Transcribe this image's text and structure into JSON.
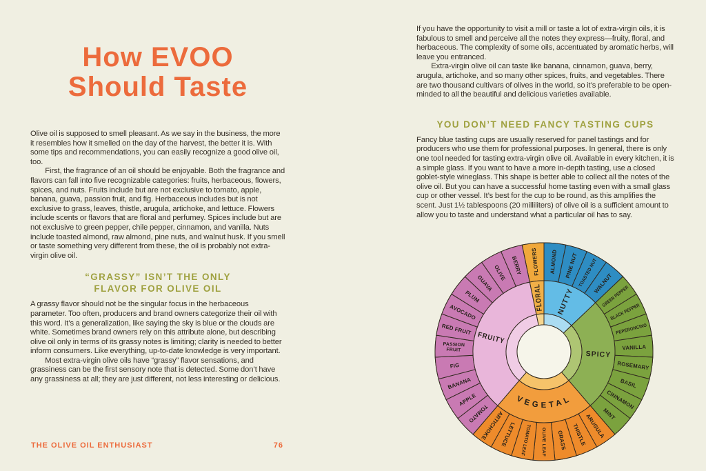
{
  "page": {
    "left": {
      "title_line1": "How EVOO",
      "title_line2": "Should Taste",
      "para1": "Olive oil is supposed to smell pleasant. As we say in the business, the more it resembles how it smelled on the day of the harvest, the better it is. With some tips and recommendations, you can easily recognize a good olive oil, too.",
      "para2": "First, the fragrance of an oil should be enjoyable. Both the fragrance and flavors can fall into five recognizable categories: fruits, herbaceous, flowers, spices, and nuts. Fruits include but are not exclusive to tomato, apple, banana, guava, passion fruit, and fig. Herbaceous includes but is not exclusive to grass, leaves, thistle, arugula, artichoke, and lettuce. Flowers include scents or flavors that are floral and perfumey. Spices include but are not exclusive to green pepper, chile pepper, cinnamon, and vanilla. Nuts include toasted almond, raw almond, pine nuts, and walnut husk. If you smell or taste something very different from these, the oil is probably not extra-virgin olive oil.",
      "heading_line1": "“GRASSY” ISN’T THE ONLY",
      "heading_line2": "FLAVOR FOR OLIVE OIL",
      "para3": "A grassy flavor should not be the singular focus in the herbaceous parameter. Too often, producers and brand owners categorize their oil with this word. It’s a generalization, like saying the sky is blue or the clouds are white. Sometimes brand owners rely on this attribute alone, but describing olive oil only in terms of its grassy notes is limiting; clarity is needed to better inform consumers. Like everything, up-to-date knowledge is very important.",
      "para4": "Most extra-virgin olive oils have “grassy” flavor sensations, and grassiness can be the first sensory note that is detected. Some don’t have any grassiness at all; they are just different, not less interesting or delicious.",
      "footer_text": "THE OLIVE OIL ENTHUSIAST",
      "page_number": "76"
    },
    "right": {
      "para1": "If you have the opportunity to visit a mill or taste a lot of extra-virgin oils, it is fabulous to smell and perceive all the notes they express—fruity, floral, and herbaceous. The complexity of some oils, accentuated by aromatic herbs, will leave you entranced.",
      "para2": "Extra-virgin olive oil can taste like banana, cinnamon, guava, berry, arugula, artichoke, and so many other spices, fruits, and vegetables. There are two thousand cultivars of olives in the world, so it’s preferable to be open-minded to all the beautiful and delicious varieties available.",
      "heading": "YOU DON’T NEED FANCY TASTING CUPS",
      "para3": "Fancy blue tasting cups are usually reserved for panel tastings and for producers who use them for professional purposes. In general, there is only one tool needed for tasting extra-virgin olive oil. Available in every kitchen, it is a simple glass. If you want to have a more in-depth tasting, use a closed goblet-style wineglass. This shape is better able to collect all the notes of the olive oil. But you can have a successful home tasting even with a small glass cup or other vessel. It’s best for the cup to be round, as this amplifies the scent. Just 1½ tablespoons (20 milliliters) of olive oil is a sufficient amount to allow you to taste and understand what a particular oil has to say."
    }
  },
  "colors": {
    "page_background": "#f0efe2",
    "title_orange": "#ec6b3c",
    "heading_olive": "#9fa140",
    "body_ink": "#363028"
  },
  "chart_data": {
    "type": "sunburst",
    "title": "EVOO flavor wheel",
    "rings": [
      "flavor family (inner)",
      "specific note (outer)"
    ],
    "segment_angle_deg": 11.6129,
    "start_angle_deg": -11.6129,
    "order_clockwise_from_top": [
      "FLORAL",
      "NUTTY",
      "SPICY",
      "VEGETAL",
      "FRUITY"
    ],
    "families": [
      {
        "name": "FLORAL",
        "label_style": "radial",
        "colors": {
          "outer": "#f0a83b",
          "mid": "#f1b048",
          "inner": "#f6d690"
        },
        "notes": [
          "FLOWERS"
        ]
      },
      {
        "name": "NUTTY",
        "label_style": "radial",
        "colors": {
          "outer": "#2e8dc3",
          "mid": "#63bce6",
          "inner": "#abdcf2"
        },
        "notes": [
          "ALMOND",
          "PINE NUT",
          "TOASTED NUT",
          "WALNUT"
        ]
      },
      {
        "name": "SPICY",
        "label_style": "radial",
        "colors": {
          "outer": "#7ba23e",
          "mid": "#8db054",
          "inner": "#aec573"
        },
        "notes": [
          "GREEN PEPPER",
          "BLACK PEPPER",
          "PEPERONCINO",
          "VANILLA",
          "ROSEMARY",
          "BASIL",
          "CINNAMON",
          "MINT"
        ]
      },
      {
        "name": "VEGETAL",
        "label_style": "arc",
        "colors": {
          "outer": "#ee8b2b",
          "mid": "#f29d3d",
          "inner": "#f6c36a"
        },
        "notes": [
          "ARUGULA",
          "THISTLE",
          "GRASS",
          "OLIVE LEAF",
          "TOMATO LEAF",
          "LETTUCE",
          "ARTICHOKE"
        ]
      },
      {
        "name": "FRUITY",
        "label_style": "radial",
        "colors": {
          "outer": "#c97ab3",
          "mid": "#e9b6da",
          "inner": "#f0cce5"
        },
        "notes": [
          "TOMATO",
          "APPLE",
          "BANANA",
          "FIG",
          "PASSION FRUIT",
          "RED FRUIT",
          "AVOCADO",
          "PLUM",
          "GUAVA",
          "OLIVE",
          "BERRY"
        ]
      }
    ],
    "geometry": {
      "hole_r": 39,
      "inner_ring_r": 55,
      "mid_ring_r": 103,
      "outer_r": 158
    },
    "stroke_color": "#322a20",
    "hole_color": "#f6f5ea",
    "label_color": "#26211a"
  }
}
